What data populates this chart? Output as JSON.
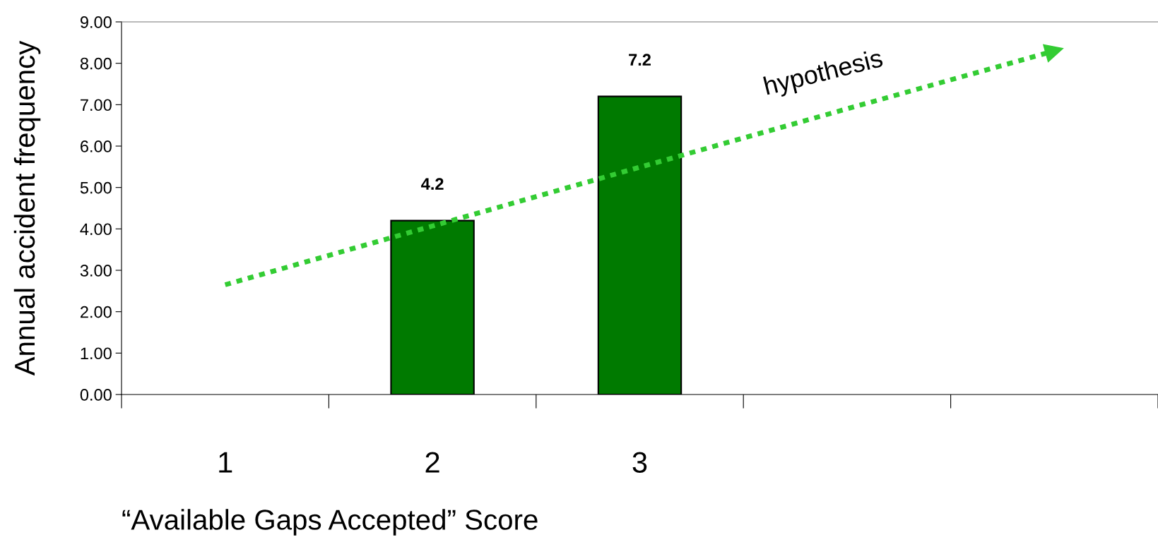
{
  "chart_data": {
    "type": "bar",
    "xlabel": "“Available Gaps Accepted” Score",
    "ylabel": "Annual accident frequency",
    "categories": [
      "1",
      "2",
      "3",
      null,
      null
    ],
    "series": [
      {
        "color": "#007a00",
        "values": [
          null,
          4.2,
          7.2,
          null,
          null
        ],
        "value_labels": [
          null,
          "4.2",
          "7.2",
          null,
          null
        ]
      },
      {
        "type": "line",
        "color": "#33cc33",
        "line_style": "dotted",
        "values": [
          2.65,
          4.07,
          5.49,
          6.9,
          8.3
        ]
      }
    ],
    "annotations": [
      "hypothesis"
    ],
    "ylim": [
      0,
      9
    ],
    "yticks": [
      {
        "value": 0,
        "label": "0.00"
      },
      {
        "value": 1,
        "label": "1.00"
      },
      {
        "value": 2,
        "label": "2.00"
      },
      {
        "value": 3,
        "label": "3.00"
      },
      {
        "value": 4,
        "label": "4.00"
      },
      {
        "value": 5,
        "label": "5.00"
      },
      {
        "value": 6,
        "label": "6.00"
      },
      {
        "value": 7,
        "label": "7.00"
      },
      {
        "value": 8,
        "label": "8.00"
      },
      {
        "value": 9,
        "label": "9.00"
      }
    ],
    "grid": false,
    "legend": false
  }
}
